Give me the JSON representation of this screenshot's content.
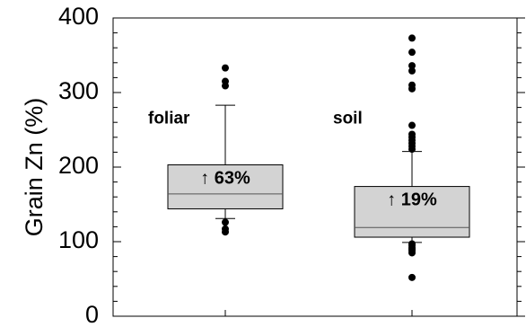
{
  "chart_data": {
    "type": "box",
    "ylabel": "Grain Zn (%)",
    "xlabel": "",
    "ylim": [
      0,
      400
    ],
    "yticks": [
      0,
      100,
      200,
      300,
      400
    ],
    "y_minor_step": 20,
    "grid": false,
    "box_fill": "#d3d3d3",
    "groups": [
      {
        "label": "foliar",
        "annotation": "↑ 63%",
        "q1": 144,
        "median": 164,
        "q3": 203,
        "whisker_low": 131,
        "whisker_high": 283,
        "outliers": [
          113,
          117,
          126,
          309,
          315,
          333
        ]
      },
      {
        "label": "soil",
        "annotation": "↑ 19%",
        "q1": 106,
        "median": 119,
        "q3": 174,
        "whisker_low": 99,
        "whisker_high": 221,
        "outliers": [
          52,
          85,
          88,
          90,
          92,
          95,
          97,
          224,
          228,
          232,
          236,
          240,
          244,
          256,
          305,
          310,
          329,
          336,
          354,
          373
        ]
      }
    ]
  }
}
